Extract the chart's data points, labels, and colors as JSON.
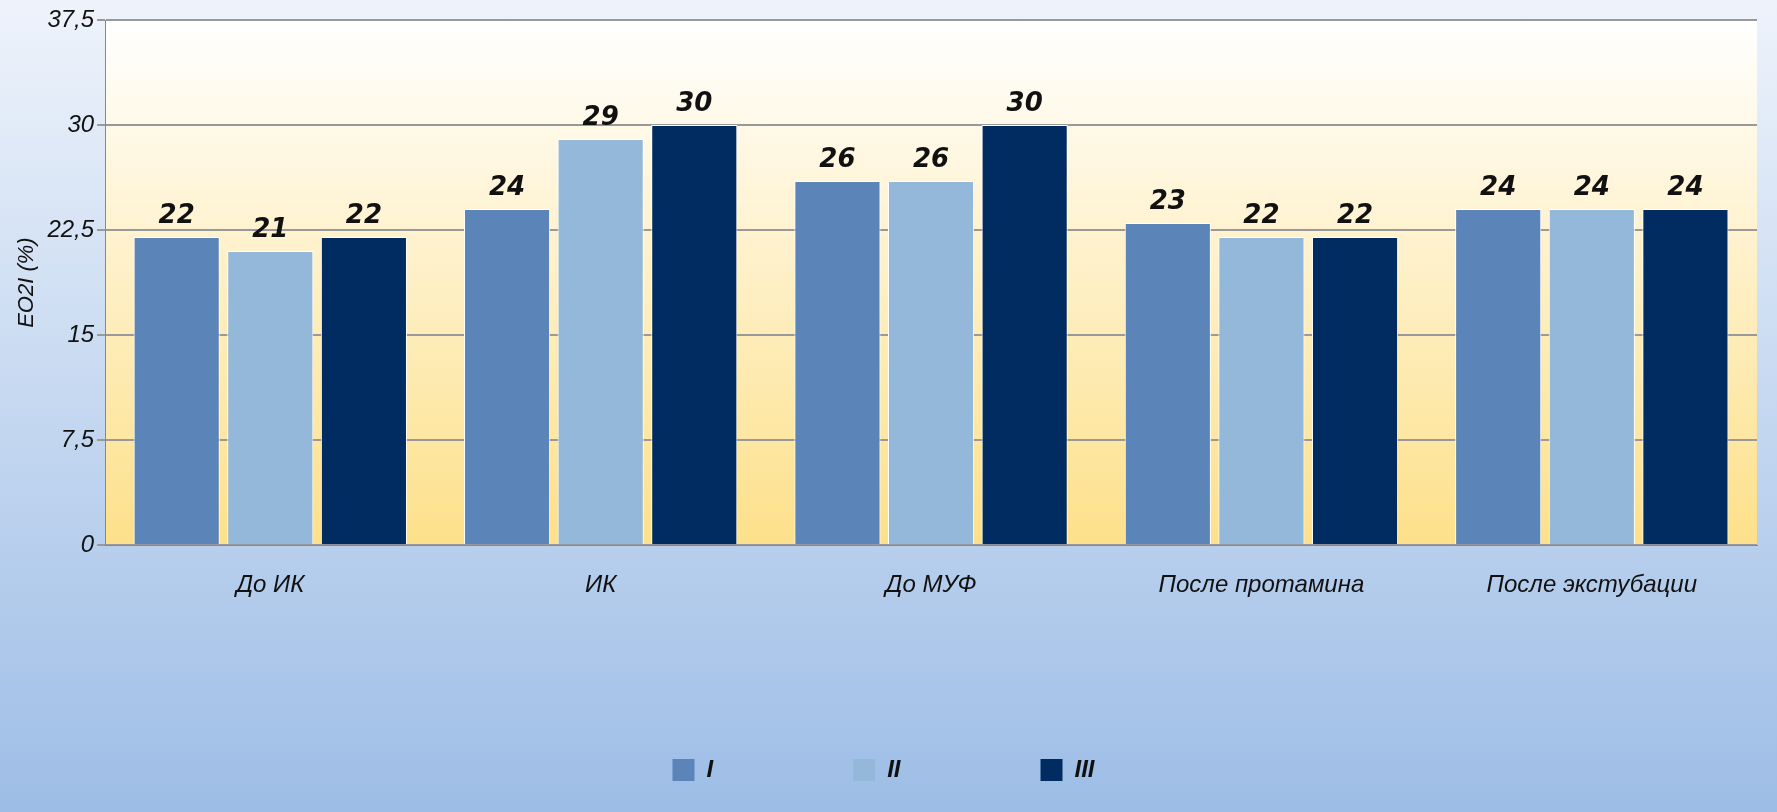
{
  "chart_data": {
    "type": "bar",
    "ylabel": "EO2I (%)",
    "categories": [
      "До ИК",
      "ИК",
      "До МУФ",
      "После протамина",
      "После экстубации"
    ],
    "series": [
      {
        "name": "I",
        "color": "#5b84b8",
        "values": [
          22,
          24,
          26,
          23,
          24
        ]
      },
      {
        "name": "II",
        "color": "#94b8da",
        "values": [
          21,
          29,
          26,
          22,
          24
        ]
      },
      {
        "name": "III",
        "color": "#002c61",
        "values": [
          22,
          30,
          30,
          22,
          24
        ]
      }
    ],
    "ylim": [
      0,
      37.5
    ],
    "yticks": [
      0,
      {
        "value": 7.5,
        "label": "7,5"
      },
      15,
      {
        "value": 22.5,
        "label": "22,5"
      },
      30,
      {
        "value": 37.5,
        "label": "37,5"
      }
    ],
    "grid": "y",
    "legend": "bottom",
    "data_labels": true
  }
}
